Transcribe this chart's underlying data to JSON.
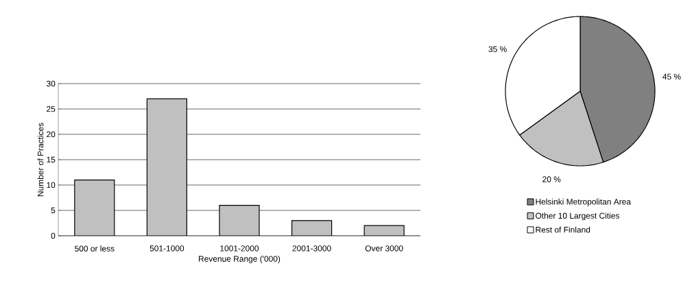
{
  "chart_data": [
    {
      "type": "bar",
      "xlabel": "Revenue Range ('000)",
      "ylabel": "Number of Practices",
      "categories": [
        "500 or less",
        "501-1000",
        "1001-2000",
        "2001-3000",
        "Over 3000"
      ],
      "values": [
        11,
        27,
        6,
        3,
        2
      ],
      "color": "#c0c0c0",
      "ylim": [
        0,
        30
      ],
      "yticks": [
        0,
        5,
        10,
        15,
        20,
        25,
        30
      ],
      "grid": "y"
    },
    {
      "type": "pie",
      "categories": [
        "Helsinki Metropolitan Area",
        "Other 10 Largest Cities",
        "Rest of Finland"
      ],
      "values": [
        45,
        20,
        35
      ],
      "colors": [
        "#808080",
        "#c0c0c0",
        "#ffffff"
      ],
      "value_labels": [
        "45 %",
        "20 %",
        "35 %"
      ],
      "legend": "bottom"
    }
  ]
}
